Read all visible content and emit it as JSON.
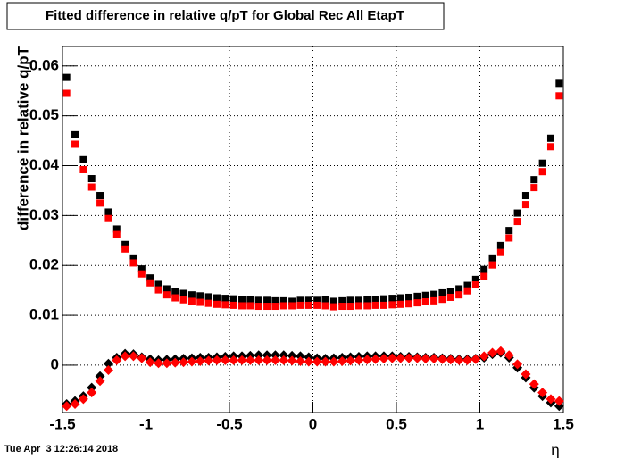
{
  "chart_data": {
    "type": "scatter",
    "title": "Fitted difference in relative q/pT for Global Rec All EtapT",
    "y_label": "difference in relative q/pT",
    "x_label": "η",
    "date_stamp": "Tue Apr  3 12:26:14 2018",
    "xlim": [
      -1.5,
      1.5
    ],
    "xticks": [
      -1.5,
      -1,
      -0.5,
      0,
      0.5,
      1,
      1.5
    ],
    "ylim": [
      -0.0095,
      0.0639
    ],
    "yticks": [
      0,
      0.01,
      0.02,
      0.03,
      0.04,
      0.05,
      0.06
    ],
    "grid": true,
    "x": [
      -1.475,
      -1.425,
      -1.375,
      -1.325,
      -1.275,
      -1.225,
      -1.175,
      -1.125,
      -1.075,
      -1.025,
      -0.975,
      -0.925,
      -0.875,
      -0.825,
      -0.775,
      -0.725,
      -0.675,
      -0.625,
      -0.575,
      -0.525,
      -0.475,
      -0.425,
      -0.375,
      -0.325,
      -0.275,
      -0.225,
      -0.175,
      -0.125,
      -0.075,
      -0.025,
      0.025,
      0.075,
      0.125,
      0.175,
      0.225,
      0.275,
      0.325,
      0.375,
      0.425,
      0.475,
      0.525,
      0.575,
      0.625,
      0.675,
      0.725,
      0.775,
      0.825,
      0.875,
      0.925,
      0.975,
      1.025,
      1.075,
      1.125,
      1.175,
      1.225,
      1.275,
      1.325,
      1.375,
      1.425,
      1.475
    ],
    "series": [
      {
        "color": "#000000",
        "marker": "square",
        "values": [
          0.0577,
          0.0462,
          0.0412,
          0.0374,
          0.034,
          0.0307,
          0.0273,
          0.0242,
          0.0215,
          0.0193,
          0.0175,
          0.0162,
          0.0153,
          0.0147,
          0.0144,
          0.0141,
          0.0139,
          0.0137,
          0.0135,
          0.0134,
          0.0133,
          0.0132,
          0.0131,
          0.013,
          0.013,
          0.0129,
          0.0129,
          0.0128,
          0.013,
          0.013,
          0.013,
          0.0131,
          0.0128,
          0.0129,
          0.013,
          0.013,
          0.0131,
          0.0132,
          0.0133,
          0.0134,
          0.0135,
          0.0136,
          0.0138,
          0.014,
          0.0142,
          0.0145,
          0.0148,
          0.0153,
          0.016,
          0.0172,
          0.0192,
          0.0215,
          0.024,
          0.027,
          0.0305,
          0.034,
          0.0372,
          0.0405,
          0.0455,
          0.0565
        ]
      },
      {
        "color": "#ff0000",
        "marker": "square",
        "values": [
          0.0545,
          0.0443,
          0.0392,
          0.0357,
          0.0325,
          0.0294,
          0.0262,
          0.0233,
          0.0205,
          0.0183,
          0.0165,
          0.0151,
          0.0141,
          0.0135,
          0.0131,
          0.0128,
          0.0126,
          0.0124,
          0.0122,
          0.0121,
          0.012,
          0.0119,
          0.0119,
          0.0118,
          0.0118,
          0.0118,
          0.0119,
          0.0119,
          0.012,
          0.012,
          0.012,
          0.0119,
          0.0117,
          0.0118,
          0.0118,
          0.0119,
          0.0119,
          0.012,
          0.012,
          0.0121,
          0.0122,
          0.0123,
          0.0125,
          0.0127,
          0.0129,
          0.0132,
          0.0136,
          0.0141,
          0.0149,
          0.0161,
          0.0178,
          0.0201,
          0.0226,
          0.0255,
          0.0288,
          0.0322,
          0.0356,
          0.0388,
          0.0438,
          0.054
        ]
      },
      {
        "color": "#000000",
        "marker": "diamond",
        "values": [
          -0.0078,
          -0.0072,
          -0.0062,
          -0.0045,
          -0.0022,
          0.0003,
          0.0015,
          0.0023,
          0.0022,
          0.0016,
          0.0012,
          0.001,
          0.0011,
          0.0012,
          0.0013,
          0.0014,
          0.0015,
          0.0015,
          0.0016,
          0.0017,
          0.0018,
          0.0018,
          0.0019,
          0.002,
          0.002,
          0.002,
          0.002,
          0.0019,
          0.0018,
          0.0016,
          0.0014,
          0.0013,
          0.0014,
          0.0015,
          0.0016,
          0.0017,
          0.0018,
          0.0018,
          0.0018,
          0.0018,
          0.0017,
          0.0017,
          0.0016,
          0.0015,
          0.0015,
          0.0014,
          0.0013,
          0.0012,
          0.0012,
          0.0013,
          0.0015,
          0.0022,
          0.0025,
          0.0015,
          -0.0005,
          -0.0025,
          -0.0045,
          -0.0062,
          -0.0075,
          -0.0082
        ]
      },
      {
        "color": "#ff0000",
        "marker": "diamond",
        "values": [
          -0.0082,
          -0.0078,
          -0.0068,
          -0.0055,
          -0.0032,
          -0.001,
          0.001,
          0.0018,
          0.0018,
          0.0014,
          0.0006,
          0.0004,
          0.0004,
          0.0005,
          0.0006,
          0.0007,
          0.0008,
          0.0009,
          0.001,
          0.001,
          0.001,
          0.001,
          0.001,
          0.001,
          0.001,
          0.001,
          0.001,
          0.0009,
          0.0008,
          0.0007,
          0.0007,
          0.0007,
          0.0007,
          0.0008,
          0.0009,
          0.001,
          0.0011,
          0.0012,
          0.0013,
          0.0014,
          0.0014,
          0.0014,
          0.0014,
          0.0013,
          0.0013,
          0.0012,
          0.0011,
          0.001,
          0.001,
          0.0012,
          0.0018,
          0.0025,
          0.0028,
          0.002,
          0.0002,
          -0.0018,
          -0.0038,
          -0.0055,
          -0.0068,
          -0.0072
        ]
      }
    ]
  }
}
